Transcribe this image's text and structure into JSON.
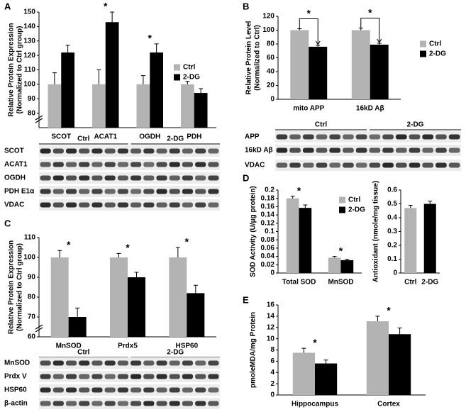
{
  "panels": [
    "A",
    "B",
    "C",
    "D",
    "E"
  ],
  "chart_data": [
    {
      "type": "bar",
      "y_label": [
        "Relative Protein Expression",
        "(Normalized to Ctrl group)"
      ],
      "categories": [
        "SCOT",
        "ACAT1",
        "OGDH",
        "PDH"
      ],
      "series": [
        {
          "name": "Ctrl",
          "color": "#b3b3b3",
          "values": [
            100,
            100,
            100,
            100
          ],
          "errors": [
            8,
            10,
            6,
            2
          ]
        },
        {
          "name": "2-DG",
          "color": "#000000",
          "values": [
            122,
            143,
            122,
            94
          ],
          "errors": [
            5,
            7,
            6,
            3
          ]
        }
      ],
      "markers": [
        null,
        "*",
        "*",
        null
      ],
      "ylim": [
        70,
        150
      ],
      "yticks": [
        80,
        90,
        100,
        110,
        120,
        130,
        140,
        150
      ],
      "axis_break": true
    },
    {
      "type": "bar",
      "y_label": [
        "Relative Protein Level",
        "(Normalized to Ctrl)"
      ],
      "categories": [
        "mito APP",
        "16kD Aβ"
      ],
      "series": [
        {
          "name": "Ctrl",
          "color": "#b3b3b3",
          "values": [
            100,
            100
          ],
          "errors": [
            2,
            3
          ]
        },
        {
          "name": "2-DG",
          "color": "#000000",
          "values": [
            76,
            79
          ],
          "errors": [
            2,
            2
          ]
        }
      ],
      "markers": [
        "*",
        "*"
      ],
      "bracket": true,
      "ylim": [
        0,
        120
      ],
      "yticks": [
        0,
        20,
        40,
        60,
        80,
        100,
        120
      ]
    },
    {
      "type": "bar",
      "y_label": [
        "Relative Protein Expression",
        "(Normalized to Ctrl group)"
      ],
      "categories": [
        "MnSOD",
        "Prdx5",
        "HSP60"
      ],
      "series": [
        {
          "color": "#b3b3b3",
          "values": [
            100,
            100,
            100
          ],
          "errors": [
            3.5,
            2,
            5
          ]
        },
        {
          "color": "#000000",
          "values": [
            70,
            90,
            82
          ],
          "errors": [
            4.5,
            2.5,
            4
          ]
        }
      ],
      "markers": [
        "*",
        "*",
        "*"
      ],
      "ylim": [
        60,
        110
      ],
      "yticks": [
        60,
        70,
        80,
        90,
        100,
        110
      ],
      "axis_break": true
    },
    {
      "type": "bar",
      "y_label": [
        "SOD Activity (U/μg protein)"
      ],
      "categories": [
        "Total SOD",
        "MnSOD"
      ],
      "series": [
        {
          "name": "Ctrl",
          "color": "#b3b3b3",
          "values": [
            0.18,
            0.037
          ],
          "errors": [
            0.005,
            0.003
          ]
        },
        {
          "name": "2-DG",
          "color": "#000000",
          "values": [
            0.157,
            0.031
          ],
          "errors": [
            0.007,
            0.002
          ]
        }
      ],
      "markers": [
        "*",
        "*"
      ],
      "ylim": [
        0,
        0.2
      ],
      "yticks": [
        0,
        0.02,
        0.04,
        0.06,
        0.08,
        0.1,
        0.12,
        0.14,
        0.16,
        0.18,
        0.2
      ]
    },
    {
      "type": "bar",
      "y_label": [
        "Antioxidant (nmole/mg tissue)"
      ],
      "categories": [
        "Ctrl",
        "2-DG"
      ],
      "values": [
        0.47,
        0.5
      ],
      "errors": [
        0.02,
        0.02
      ],
      "colors": [
        "#b3b3b3",
        "#000000"
      ],
      "ylim": [
        0,
        0.6
      ],
      "yticks": [
        0,
        0.1,
        0.2,
        0.3,
        0.4,
        0.5,
        0.6
      ]
    },
    {
      "type": "bar",
      "y_label": [
        "pmoleMDA/mg Protein"
      ],
      "categories": [
        "Hippocampus",
        "Cortex"
      ],
      "series": [
        {
          "color": "#b3b3b3",
          "values": [
            7.5,
            13.1
          ],
          "errors": [
            0.8,
            0.9
          ]
        },
        {
          "color": "#000000",
          "values": [
            5.6,
            10.8
          ],
          "errors": [
            0.6,
            1.1
          ]
        }
      ],
      "markers": [
        "*",
        "*"
      ],
      "ylim": [
        0,
        16
      ],
      "yticks": [
        0,
        2,
        4,
        6,
        8,
        10,
        12,
        14,
        16
      ]
    }
  ],
  "blots": [
    {
      "groups": [
        "Ctrl",
        "2-DG"
      ],
      "rows": [
        "SCOT",
        "ACAT1",
        "OGDH",
        "PDH E1α",
        "VDAC"
      ]
    },
    {
      "groups": [
        "Ctrl",
        "2-DG"
      ],
      "rows": [
        "APP",
        "16kD Aβ",
        "VDAC"
      ]
    },
    {
      "groups": [
        "Ctrl",
        "2-DG"
      ],
      "rows": [
        "MnSOD",
        "Prdx V",
        "HSP60",
        "β-actin"
      ]
    }
  ]
}
